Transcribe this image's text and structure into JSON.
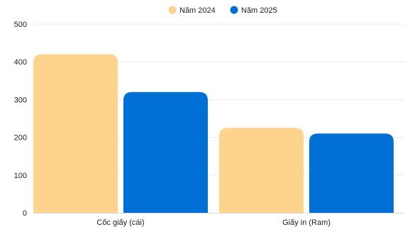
{
  "chart_data": {
    "type": "bar",
    "categories": [
      "Cốc giấy (cái)",
      "Giấy in (Ram)"
    ],
    "series": [
      {
        "name": "Năm 2024",
        "color": "#FDD38D",
        "values": [
          420,
          225
        ]
      },
      {
        "name": "Năm 2025",
        "color": "#006FD6",
        "values": [
          320,
          210
        ]
      }
    ],
    "yticks": [
      "0",
      "100",
      "200",
      "300",
      "400",
      "500"
    ],
    "ylim": [
      0,
      500
    ],
    "grid": true,
    "legend": "top-center"
  }
}
